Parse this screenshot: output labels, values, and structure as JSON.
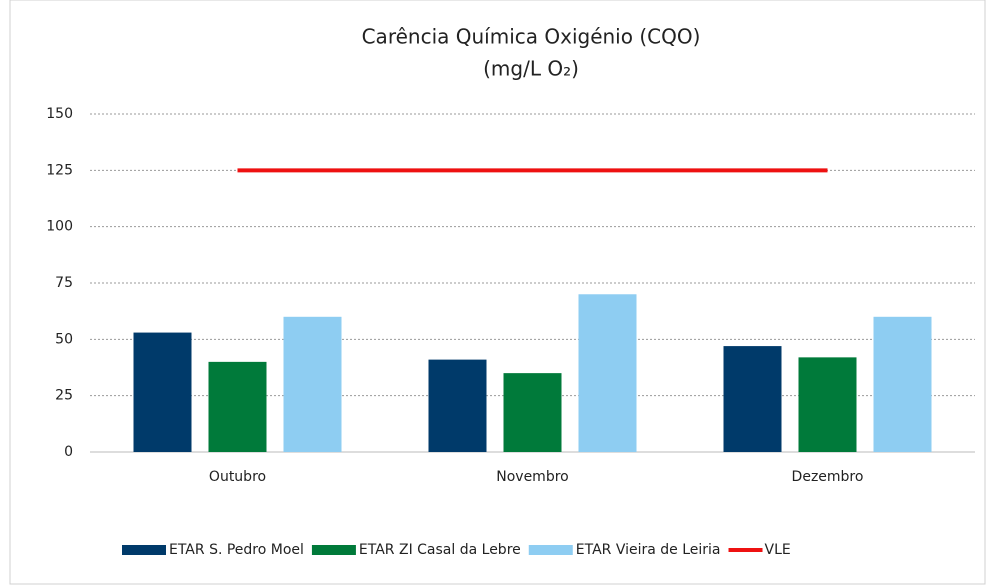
{
  "chart_data": {
    "type": "bar",
    "title": "Carência Química Oxigénio (CQO)",
    "subtitle": "(mg/L O₂)",
    "categories": [
      "Outubro",
      "Novembro",
      "Dezembro"
    ],
    "series": [
      {
        "name": "ETAR S. Pedro Moel",
        "color": "#003a6a",
        "values": [
          53,
          41,
          47
        ]
      },
      {
        "name": "ETAR ZI Casal da Lebre",
        "color": "#007a3a",
        "values": [
          40,
          35,
          42
        ]
      },
      {
        "name": "ETAR Vieira de Leiria",
        "color": "#8ecdf2",
        "values": [
          60,
          70,
          60
        ]
      },
      {
        "name": "VLE",
        "color": "#ee1111",
        "type": "line",
        "values": [
          125,
          125,
          125
        ]
      }
    ],
    "ylim": [
      0,
      150
    ],
    "yticks": [
      0,
      25,
      50,
      75,
      100,
      125,
      150
    ],
    "grid": true,
    "legend": "bottom"
  }
}
